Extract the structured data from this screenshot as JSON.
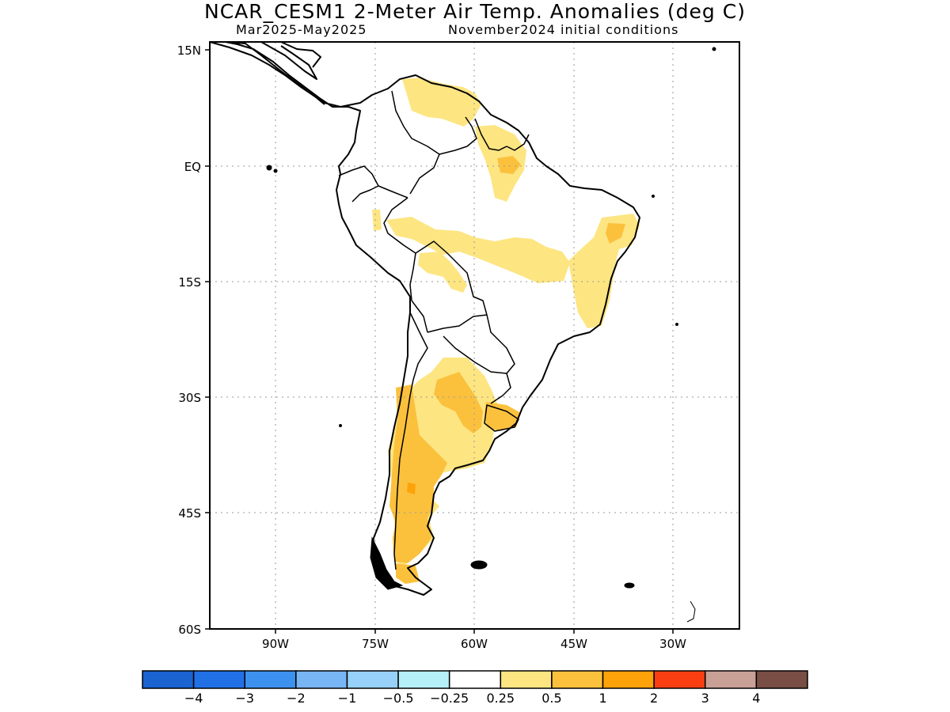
{
  "title": "NCAR_CESM1 2-Meter Air Temp. Anomalies (deg C)",
  "subtitle_left": "Mar2025-May2025",
  "subtitle_right": "November2024 initial conditions",
  "lat_labels": [
    "15N",
    "EQ",
    "15S",
    "30S",
    "45S",
    "60S"
  ],
  "lon_labels": [
    "90W",
    "75W",
    "60W",
    "45W",
    "30W"
  ],
  "colorbar": {
    "colors": [
      "#1a63d1",
      "#2270e6",
      "#3d91ee",
      "#78b5f5",
      "#97d0f8",
      "#b5f0f8",
      "#ffffff",
      "#fde582",
      "#fbc13d",
      "#fea20a",
      "#fb3e12",
      "#c9a095",
      "#784e45"
    ],
    "labels": [
      "-4",
      "-3",
      "-2",
      "-1",
      "-0.5",
      "-0.25",
      "0.25",
      "0.5",
      "1",
      "2",
      "3",
      "4"
    ]
  },
  "chart_data": {
    "type": "heatmap",
    "title": "NCAR_CESM1 2-Meter Air Temp. Anomalies (deg C)",
    "subtitle": "Mar2025-May2025   November2024 initial conditions",
    "region": "South America",
    "lon_range": [
      -95,
      -15
    ],
    "lat_range": [
      -60,
      15
    ],
    "grid": true,
    "levels": [
      -4,
      -3,
      -2,
      -1,
      -0.5,
      -0.25,
      0.25,
      0.5,
      1,
      2,
      3,
      4
    ],
    "anomaly_regions": [
      {
        "area": "Northern Venezuela",
        "range": "0.25 to 0.5"
      },
      {
        "area": "Guianas / northern Brazil (Amapa)",
        "range": "0.25 to 1"
      },
      {
        "area": "Central Brazil band (Mato Grosso - Bahia)",
        "range": "0.25 to 0.5"
      },
      {
        "area": "Northeastern Brazil",
        "range": "0.25 to 1"
      },
      {
        "area": "Bolivia lowlands",
        "range": "0.25 to 0.5"
      },
      {
        "area": "Northern/central Argentina",
        "range": "0.25 to 1"
      },
      {
        "area": "Uruguay",
        "range": "0.5 to 1"
      },
      {
        "area": "Patagonia / southern Chile",
        "range": "0.5 to 1"
      }
    ]
  }
}
